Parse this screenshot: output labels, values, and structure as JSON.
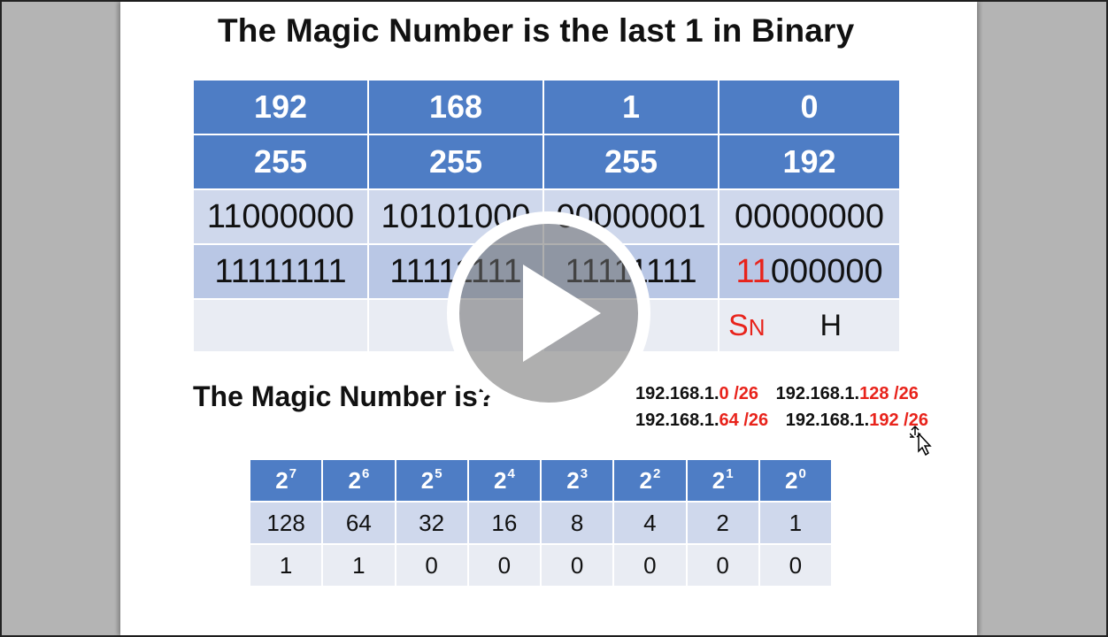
{
  "title": "The Magic Number is the last 1 in Binary",
  "main_table": {
    "ip_octets": [
      "192",
      "168",
      "1",
      "0"
    ],
    "mask_octets": [
      "255",
      "255",
      "255",
      "192"
    ],
    "ip_binary": [
      "11000000",
      "10101000",
      "00000001",
      "00000000"
    ],
    "mask_binary": [
      "11111111",
      "11111111",
      "11111111"
    ],
    "mask_binary_last": {
      "highlight": "11",
      "rest": "000000"
    },
    "sn_label": "S",
    "sn_sub": "N",
    "host_label": "H"
  },
  "question": "The Magic Number is?",
  "subnets": [
    {
      "prefix": "192.168.1.",
      "host": "0",
      "cidr": " /26"
    },
    {
      "prefix": "192.168.1.",
      "host": "128",
      "cidr": " /26"
    },
    {
      "prefix": "192.168.1.",
      "host": "64",
      "cidr": " /26"
    },
    {
      "prefix": "192.168.1.",
      "host": "192",
      "cidr": " /26"
    }
  ],
  "power_table": {
    "base": "2",
    "exponents": [
      "7",
      "6",
      "5",
      "4",
      "3",
      "2",
      "1",
      "0"
    ],
    "values": [
      "128",
      "64",
      "32",
      "16",
      "8",
      "4",
      "2",
      "1"
    ],
    "bits": [
      "1",
      "1",
      "0",
      "0",
      "0",
      "0",
      "0",
      "0"
    ]
  },
  "colors": {
    "header_blue": "#4e7dc5",
    "light_blue": "#cfd8ec",
    "highlight_red": "#e8231b"
  },
  "icons": [
    "play-icon",
    "move-cursor-icon"
  ]
}
